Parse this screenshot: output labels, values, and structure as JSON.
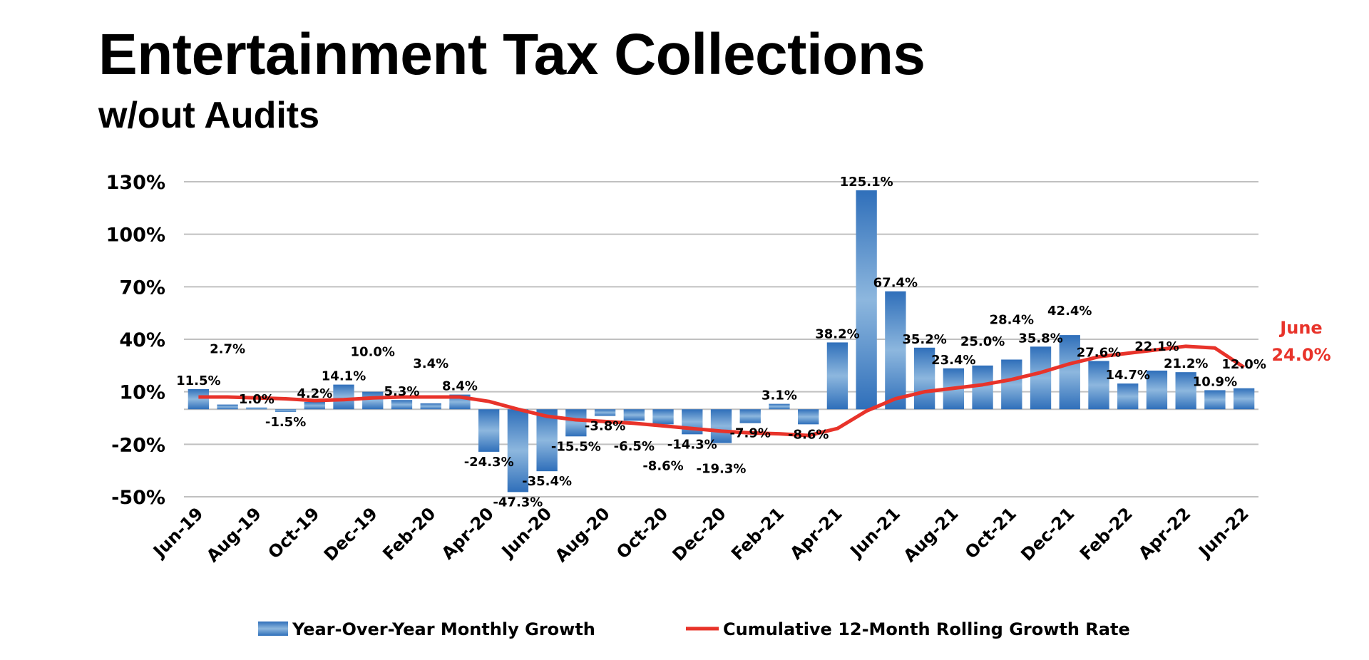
{
  "chart_data": {
    "type": "bar",
    "title": "Entertainment Tax Collections",
    "subtitle": "w/out Audits",
    "xlabel": "",
    "ylabel": "",
    "ylim": [
      -50,
      130
    ],
    "yticks": [
      "130%",
      "100%",
      "70%",
      "40%",
      "10%",
      "-20%",
      "-50%"
    ],
    "ytick_values": [
      130,
      100,
      70,
      40,
      10,
      -20,
      -50
    ],
    "grid": true,
    "legend_position": "bottom",
    "categories": [
      "Jun-19",
      "Jul-19",
      "Aug-19",
      "Sep-19",
      "Oct-19",
      "Nov-19",
      "Dec-19",
      "Jan-20",
      "Feb-20",
      "Mar-20",
      "Apr-20",
      "May-20",
      "Jun-20",
      "Jul-20",
      "Aug-20",
      "Sep-20",
      "Oct-20",
      "Nov-20",
      "Dec-20",
      "Jan-21",
      "Feb-21",
      "Mar-21",
      "Apr-21",
      "May-21",
      "Jun-21",
      "Jul-21",
      "Aug-21",
      "Sep-21",
      "Oct-21",
      "Nov-21",
      "Dec-21",
      "Jan-22",
      "Feb-22",
      "Mar-22",
      "Apr-22",
      "May-22",
      "Jun-22"
    ],
    "xtick_labels": [
      "Jun-19",
      "Aug-19",
      "Oct-19",
      "Dec-19",
      "Feb-20",
      "Apr-20",
      "Jun-20",
      "Aug-20",
      "Oct-20",
      "Dec-20",
      "Feb-21",
      "Apr-21",
      "Jun-21",
      "Aug-21",
      "Oct-21",
      "Dec-21",
      "Feb-22",
      "Apr-22",
      "Jun-22"
    ],
    "series": [
      {
        "name": "Year-Over-Year Monthly Growth",
        "type": "bar",
        "color": "#2f6fba",
        "values": [
          11.5,
          2.7,
          1.0,
          -1.5,
          4.2,
          14.1,
          10.0,
          5.3,
          3.4,
          8.4,
          -24.3,
          -47.3,
          -35.4,
          -15.5,
          -3.8,
          -6.5,
          -8.6,
          -14.3,
          -19.3,
          -7.9,
          3.1,
          -8.6,
          38.2,
          125.1,
          67.4,
          35.2,
          23.4,
          25.0,
          28.4,
          35.8,
          42.4,
          27.6,
          14.7,
          22.1,
          21.2,
          10.9,
          12.0
        ],
        "labels": [
          "11.5%",
          "2.7%",
          "1.0%",
          "-1.5%",
          "4.2%",
          "14.1%",
          "10.0%",
          "5.3%",
          "3.4%",
          "8.4%",
          "-24.3%",
          "-47.3%",
          "-35.4%",
          "-15.5%",
          "-3.8%",
          "-6.5%",
          "-8.6%",
          "-14.3%",
          "-19.3%",
          "-7.9%",
          "3.1%",
          "-8.6%",
          "38.2%",
          "125.1%",
          "67.4%",
          "35.2%",
          "23.4%",
          "25.0%",
          "28.4%",
          "35.8%",
          "42.4%",
          "27.6%",
          "14.7%",
          "22.1%",
          "21.2%",
          "10.9%",
          "12.0%"
        ]
      },
      {
        "name": "Cumulative 12-Month Rolling Growth Rate",
        "type": "line",
        "color": "#e8332a",
        "values": [
          7,
          7,
          6.5,
          6,
          5,
          5.5,
          6.5,
          7,
          7,
          7,
          4.5,
          0,
          -4,
          -6,
          -7,
          -8,
          -9.5,
          -11,
          -12.5,
          -13.5,
          -14,
          -15,
          -11,
          -1,
          6,
          10,
          12,
          14,
          17,
          21,
          26,
          30,
          32,
          34,
          36,
          35,
          24
        ]
      }
    ],
    "annotation": {
      "month": "June",
      "value": "24.0%",
      "color": "#e8332a"
    }
  }
}
